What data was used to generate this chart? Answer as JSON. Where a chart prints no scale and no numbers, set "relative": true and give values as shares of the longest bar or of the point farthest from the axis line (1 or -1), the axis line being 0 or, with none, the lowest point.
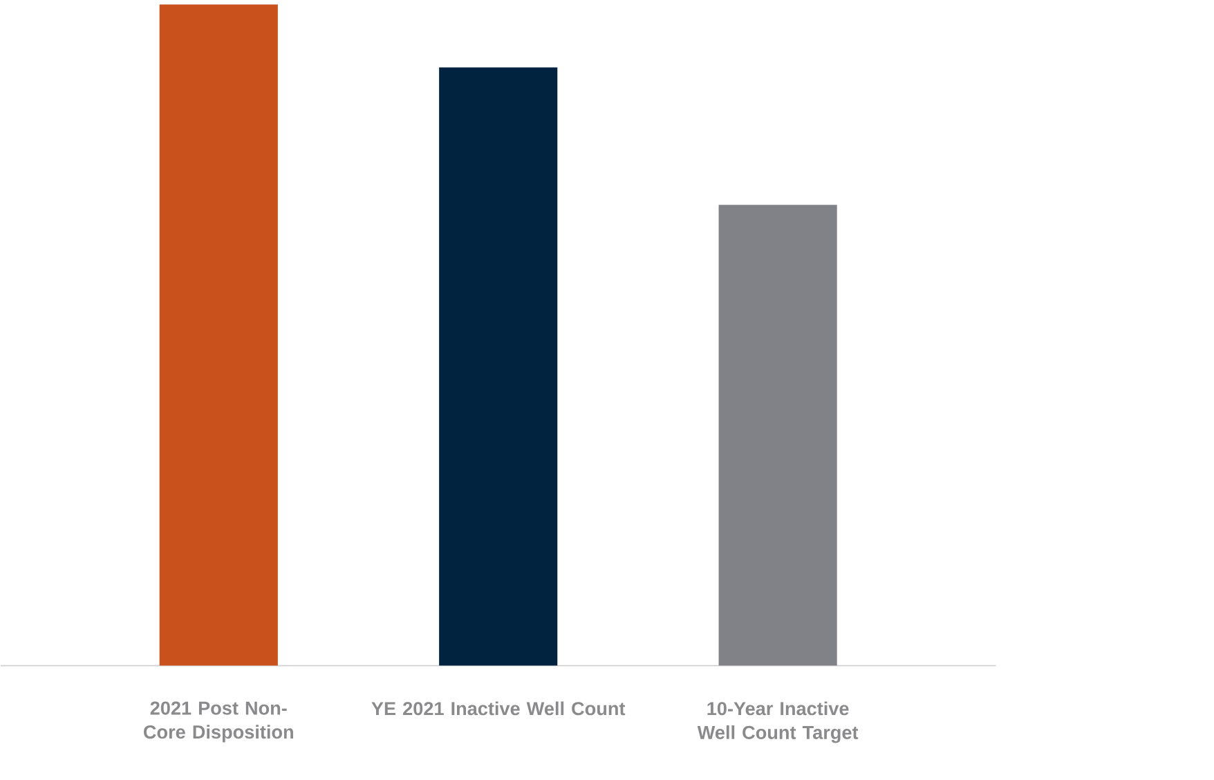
{
  "chart_data": {
    "type": "bar",
    "relative": true,
    "categories": [
      "2021 Post Non-Core Disposition",
      "YE 2021 Inactive Well Count",
      "10-Year Inactive Well Count Target"
    ],
    "values": [
      1,
      0.905,
      0.697
    ],
    "colors": [
      "#c9521c",
      "#012340",
      "#818288"
    ]
  }
}
